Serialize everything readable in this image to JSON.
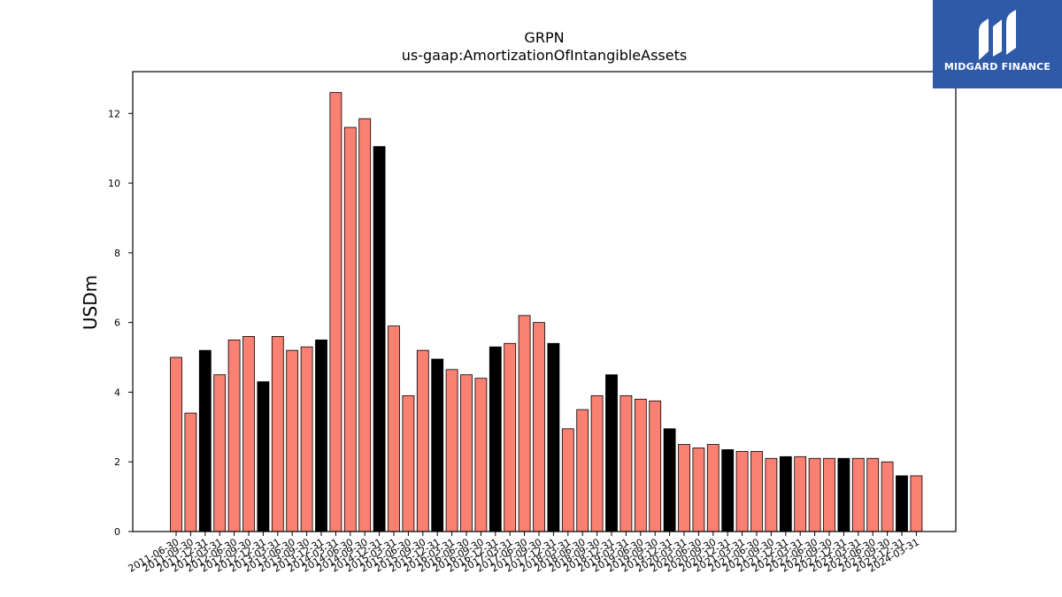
{
  "chart_data": {
    "type": "bar",
    "title": "GRPN",
    "subtitle": "us-gaap:AmortizationOfIntangibleAssets",
    "xlabel": "",
    "ylabel": "USDm",
    "ylim": [
      0,
      13.2
    ],
    "yticks": [
      0,
      2,
      4,
      6,
      8,
      10,
      12
    ],
    "grid": false,
    "colors": {
      "quarter": "#fa8072",
      "year_end": "#000000",
      "edge": "#000000"
    },
    "categories": [
      "2011-06-30",
      "2011-09-30",
      "2011-12-31",
      "2012-03-31",
      "2012-06-30",
      "2012-09-30",
      "2012-12-31",
      "2013-03-31",
      "2013-06-30",
      "2013-09-30",
      "2013-12-31",
      "2014-03-31",
      "2014-06-30",
      "2014-09-30",
      "2014-12-31",
      "2015-03-31",
      "2015-06-30",
      "2015-09-30",
      "2015-12-31",
      "2016-03-31",
      "2016-06-30",
      "2016-09-30",
      "2016-12-31",
      "2017-03-31",
      "2017-06-30",
      "2017-09-30",
      "2017-12-31",
      "2018-03-31",
      "2018-06-30",
      "2018-09-30",
      "2018-12-31",
      "2019-03-31",
      "2019-06-30",
      "2019-09-30",
      "2019-12-31",
      "2020-03-31",
      "2020-06-30",
      "2020-09-30",
      "2020-12-31",
      "2021-03-31",
      "2021-06-30",
      "2021-09-30",
      "2021-12-31",
      "2022-03-31",
      "2022-06-30",
      "2022-09-30",
      "2022-12-31",
      "2023-03-31",
      "2023-06-30",
      "2023-09-30",
      "2023-12-31",
      "2024-03-31"
    ],
    "values": [
      5.0,
      3.4,
      5.2,
      4.5,
      5.5,
      5.6,
      4.3,
      5.6,
      5.2,
      5.3,
      5.5,
      12.6,
      11.6,
      11.85,
      11.05,
      5.9,
      3.9,
      5.2,
      4.95,
      4.65,
      4.5,
      4.4,
      5.3,
      5.4,
      6.2,
      6.0,
      5.4,
      2.95,
      3.5,
      3.9,
      4.5,
      3.9,
      3.8,
      3.75,
      2.95,
      2.5,
      2.4,
      2.5,
      2.35,
      2.3,
      2.3,
      2.1,
      2.15,
      2.15,
      2.1,
      2.1,
      2.1,
      2.1,
      2.1,
      2.0,
      1.6,
      1.6
    ],
    "highlight": [
      false,
      false,
      true,
      false,
      false,
      false,
      true,
      false,
      false,
      false,
      true,
      false,
      false,
      false,
      true,
      false,
      false,
      false,
      true,
      false,
      false,
      false,
      true,
      false,
      false,
      false,
      true,
      false,
      false,
      false,
      true,
      false,
      false,
      false,
      true,
      false,
      false,
      false,
      true,
      false,
      false,
      false,
      true,
      false,
      false,
      false,
      true,
      false,
      false,
      false,
      true,
      false
    ]
  },
  "logo": {
    "text": "MIDGARD FINANCE",
    "icon": "midgard-logo-icon"
  }
}
